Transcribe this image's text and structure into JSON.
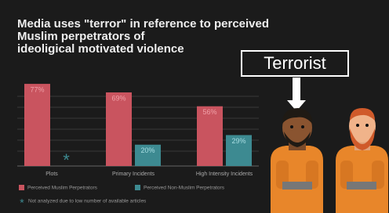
{
  "chart_data": {
    "type": "bar",
    "title": [
      "Media uses \"terror\" in reference to perceived",
      "Muslim perpetrators of",
      "ideoligical motivated violence"
    ],
    "categories": [
      "Plots",
      "Primary Incidents",
      "High Intensity Incidents"
    ],
    "series": [
      {
        "name": "Perceived Muslim Perpetrators",
        "color": "#c9545f",
        "values": [
          77,
          69,
          56
        ],
        "value_labels": [
          "77%",
          "69%",
          "56%"
        ]
      },
      {
        "name": "Perceived Non-Muslim Perpetrators",
        "color": "#3d8a91",
        "values": [
          null,
          20,
          29
        ],
        "value_labels": [
          null,
          "20%",
          "29%"
        ]
      }
    ],
    "ylim": [
      0,
      80
    ],
    "note_marker": "*",
    "note": "Not analyzed due to low number of available articles",
    "sign": "Terrorist"
  }
}
